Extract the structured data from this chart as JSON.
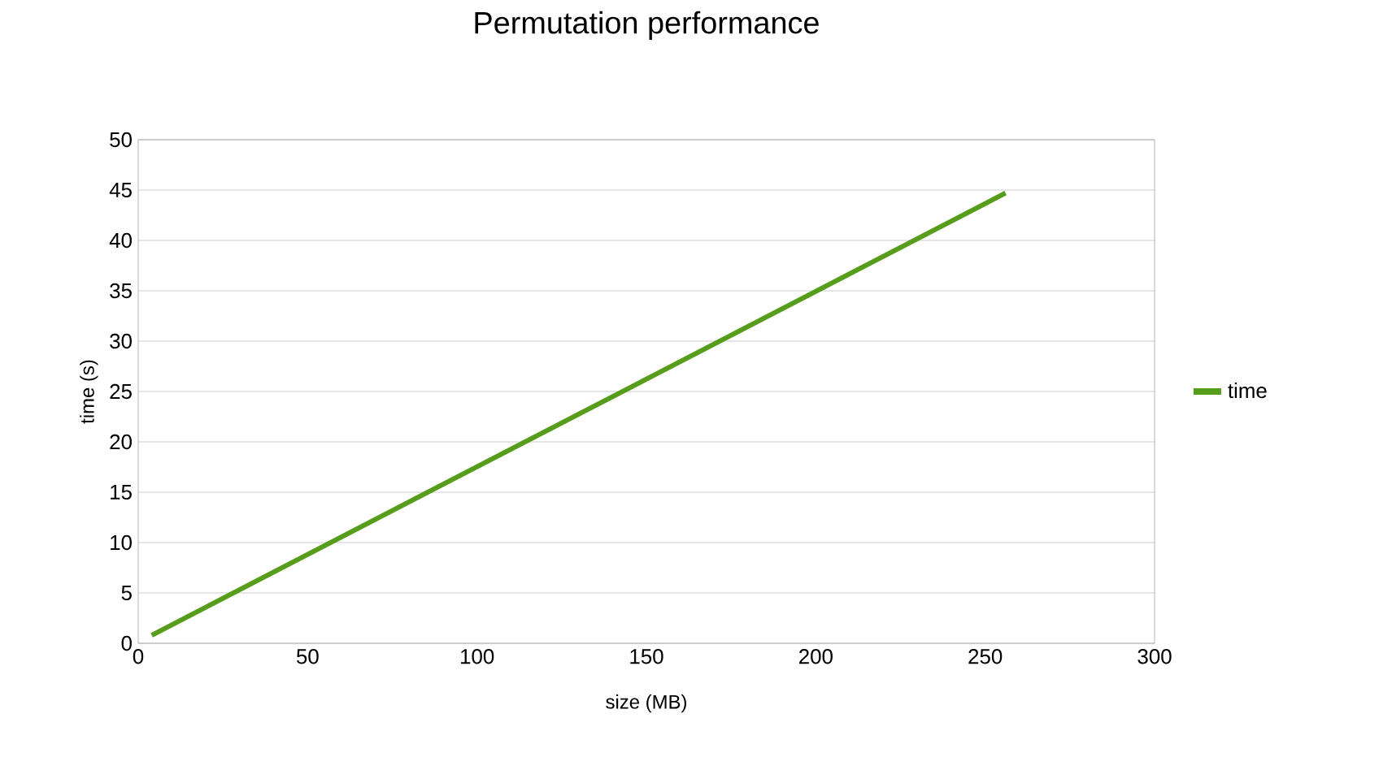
{
  "chart_data": {
    "type": "line",
    "title": "Permutation performance",
    "xlabel": "size (MB)",
    "ylabel": "time (s)",
    "x": [
      4,
      256
    ],
    "series": [
      {
        "name": "time",
        "color": "#579d1c",
        "values": [
          0.8,
          44.7
        ]
      }
    ],
    "xlim": [
      0,
      300
    ],
    "xticks": [
      0,
      50,
      100,
      150,
      200,
      250,
      300
    ],
    "ylim": [
      0,
      50
    ],
    "yticks": [
      0,
      5,
      10,
      15,
      20,
      25,
      30,
      35,
      40,
      45,
      50
    ],
    "grid": "y",
    "legend": "right",
    "marker": "none",
    "line_style": "solid"
  }
}
